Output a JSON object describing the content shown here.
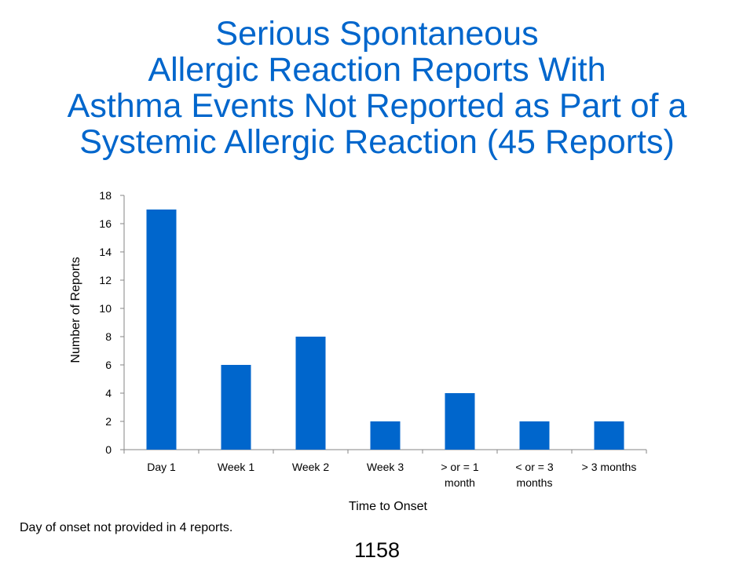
{
  "slide": {
    "title_lines": [
      "Serious Spontaneous",
      "Allergic Reaction Reports With",
      "Asthma Events Not Reported as Part of a",
      "Systemic Allergic Reaction (45 Reports)"
    ],
    "footnote": "Day of onset not provided in 4 reports.",
    "page_number": "1158"
  },
  "chart_data": {
    "type": "bar",
    "categories": [
      "Day 1",
      "Week 1",
      "Week 2",
      "Week 3",
      "> or = 1 month",
      "< or = 3 months",
      "> 3 months"
    ],
    "category_label_lines": [
      [
        "Day 1"
      ],
      [
        "Week 1"
      ],
      [
        "Week 2"
      ],
      [
        "Week 3"
      ],
      [
        "> or = 1",
        "month"
      ],
      [
        "< or = 3",
        "months"
      ],
      [
        "> 3 months"
      ]
    ],
    "values": [
      17,
      6,
      8,
      2,
      4,
      2,
      2
    ],
    "xlabel": "Time to Onset",
    "ylabel": "Number of Reports",
    "ylim": [
      0,
      18
    ],
    "yticks": [
      0,
      2,
      4,
      6,
      8,
      10,
      12,
      14,
      16,
      18
    ],
    "grid": false,
    "legend": "none",
    "bar_color": "#0066CC"
  }
}
